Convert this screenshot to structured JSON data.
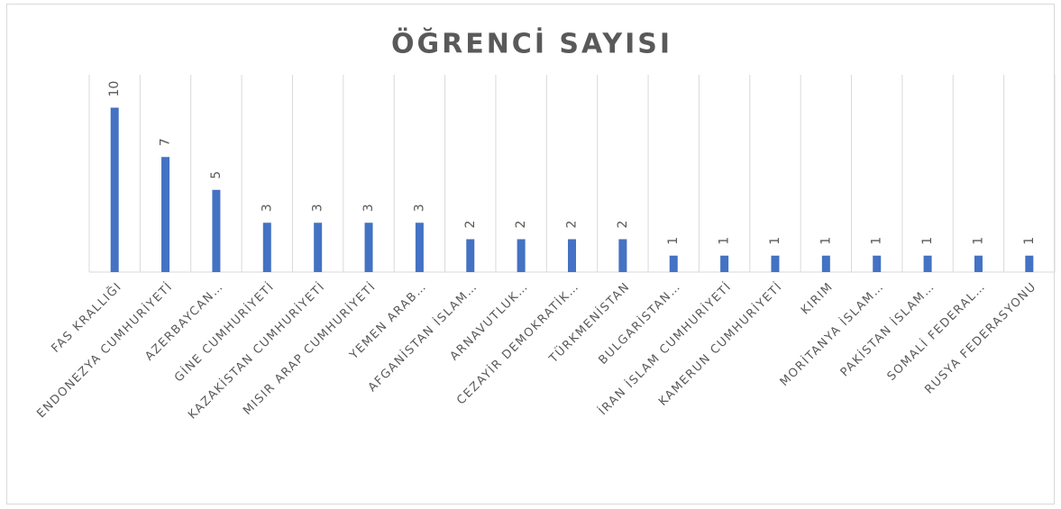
{
  "chart_data": {
    "type": "bar",
    "title": "ÖĞRENCİ SAYISI",
    "categories": [
      "FAS KRALLIĞI",
      "ENDONEZYA CUMHURİYETİ",
      "AZERBAYCAN…",
      "GİNE CUMHURİYETİ",
      "KAZAKİSTAN CUMHURİYETİ",
      "MISIR ARAP CUMHURİYETİ",
      "YEMEN ARAB…",
      "AFGANİSTAN İSLAM…",
      "ARNAVUTLUK…",
      "CEZAYİR DEMOKRATİK…",
      "TÜRKMENİSTAN",
      "BULGARİSTAN…",
      "İRAN İSLAM CUMHURİYETİ",
      "KAMERUN CUMHURİYETİ",
      "KIRIM",
      "MORİTANYA İSLAM…",
      "PAKİSTAN İSLAM…",
      "SOMALİ FEDERAL…",
      "RUSYA FEDERASYONU"
    ],
    "values": [
      10,
      7,
      5,
      3,
      3,
      3,
      3,
      2,
      2,
      2,
      2,
      1,
      1,
      1,
      1,
      1,
      1,
      1,
      1
    ],
    "color": "#4472c4",
    "ylim": [
      0,
      12
    ],
    "grid": true
  }
}
